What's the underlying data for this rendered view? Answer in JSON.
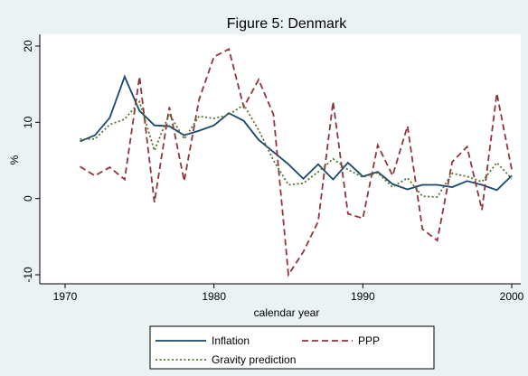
{
  "chart_data": {
    "type": "line",
    "title": "Figure 5: Denmark",
    "x_label": "calendar year",
    "y_label": "%",
    "x": [
      1971,
      1972,
      1973,
      1974,
      1975,
      1976,
      1977,
      1978,
      1979,
      1980,
      1981,
      1982,
      1983,
      1984,
      1985,
      1986,
      1987,
      1988,
      1989,
      1990,
      1991,
      1992,
      1993,
      1994,
      1995,
      1996,
      1997,
      1998,
      1999,
      2000
    ],
    "series": [
      {
        "name": "Inflation",
        "color": "#1a476f",
        "dash": "solid",
        "values": [
          7.5,
          8.3,
          10.6,
          16,
          11.5,
          9.6,
          9.5,
          8.3,
          8.9,
          9.6,
          11.2,
          10.2,
          7.7,
          6.1,
          4.5,
          2.6,
          4.5,
          2.5,
          4.7,
          2.9,
          3.5,
          1.9,
          1.2,
          1.8,
          1.8,
          1.5,
          2.3,
          1.8,
          1.1,
          3.0
        ]
      },
      {
        "name": "PPP",
        "color": "#90353b",
        "dash": "dashed",
        "values": [
          4.2,
          3.0,
          4.1,
          2.5,
          16,
          -0.5,
          12,
          2.3,
          13,
          18.6,
          19.6,
          12,
          15.6,
          11,
          -10,
          -7,
          -3,
          12.7,
          -2,
          -2.6,
          7,
          3,
          9.5,
          -4,
          -5.5,
          4.8,
          6.8,
          -1.5,
          13.8,
          3.8
        ]
      },
      {
        "name": "Gravity prediction",
        "color": "#55752f",
        "dash": "dotted",
        "values": [
          7.8,
          7.8,
          9.7,
          10.4,
          12.7,
          6.3,
          11.1,
          7.8,
          10.8,
          10.5,
          11,
          12.3,
          9,
          5,
          1.8,
          2,
          3.5,
          5.2,
          3.8,
          2.8,
          3.4,
          1.5,
          2.7,
          0.3,
          0.2,
          3.3,
          2.9,
          2.2,
          4.7,
          2.6
        ]
      }
    ],
    "xlim": [
      1970,
      2000
    ],
    "xticks": [
      1970,
      1980,
      1990,
      2000
    ],
    "ylim": [
      -10,
      20
    ],
    "yticks": [
      -10,
      0,
      10,
      20
    ]
  }
}
